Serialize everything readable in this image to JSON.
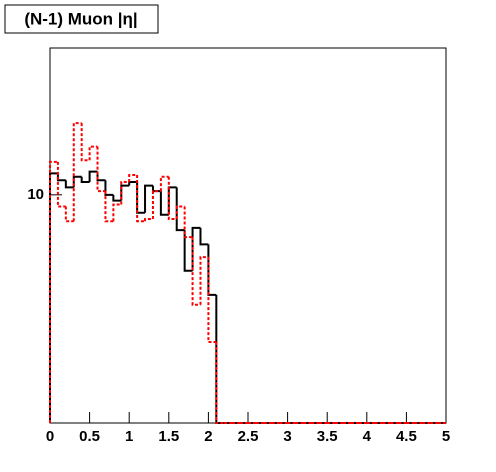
{
  "chart_data": {
    "type": "histogram",
    "title": "(N-1) Muon |η|",
    "bins": [
      0,
      0.1,
      0.2,
      0.3,
      0.4,
      0.5,
      0.6,
      0.7,
      0.8,
      0.9,
      1,
      1.1,
      1.2,
      1.3,
      1.4,
      1.5,
      1.6,
      1.7,
      1.8,
      1.9,
      2,
      2.1,
      2.2,
      2.3,
      2.4,
      2.5,
      2.6,
      2.7,
      2.8,
      2.9,
      3,
      3.1,
      3.2,
      3.3,
      3.4,
      3.5,
      3.6,
      3.7,
      3.8,
      3.9,
      4,
      4.1,
      4.2,
      4.3,
      4.4,
      4.5,
      4.6,
      4.7,
      4.8,
      4.9,
      5
    ],
    "series": [
      {
        "color": "#000000",
        "dashed": false,
        "values": [
          11.2,
          10.8,
          10.4,
          11.0,
          10.7,
          11.3,
          10.8,
          10.0,
          9.7,
          10.5,
          10.7,
          9.1,
          10.5,
          10.2,
          9.0,
          10.4,
          8.3,
          6.7,
          8.4,
          7.7,
          5.9,
          0,
          0,
          0,
          0,
          0,
          0,
          0,
          0,
          0,
          0,
          0,
          0,
          0,
          0,
          0,
          0,
          0,
          0,
          0,
          0,
          0,
          0,
          0,
          0,
          0,
          0,
          0,
          0,
          0
        ]
      },
      {
        "color": "#ff0000",
        "dashed": true,
        "values": [
          11.9,
          9.4,
          8.7,
          14.6,
          12.0,
          12.9,
          10.2,
          8.7,
          9.5,
          10.7,
          11.1,
          8.7,
          8.8,
          10.2,
          11.0,
          8.8,
          9.4,
          8.0,
          5.6,
          7.2,
          4.6,
          0,
          0,
          0,
          0,
          0,
          0,
          0,
          0,
          0,
          0,
          0,
          0,
          0,
          0,
          0,
          0,
          0,
          0,
          0,
          0,
          0,
          0,
          0,
          0,
          0,
          0,
          0,
          0,
          0
        ]
      }
    ],
    "xlim": [
      0,
      5
    ],
    "xticks": [
      0,
      0.5,
      1,
      1.5,
      2,
      2.5,
      3,
      3.5,
      4,
      4.5,
      5
    ],
    "ylim": [
      3,
      21.7
    ],
    "yticks": [
      10
    ],
    "log_y": true
  }
}
